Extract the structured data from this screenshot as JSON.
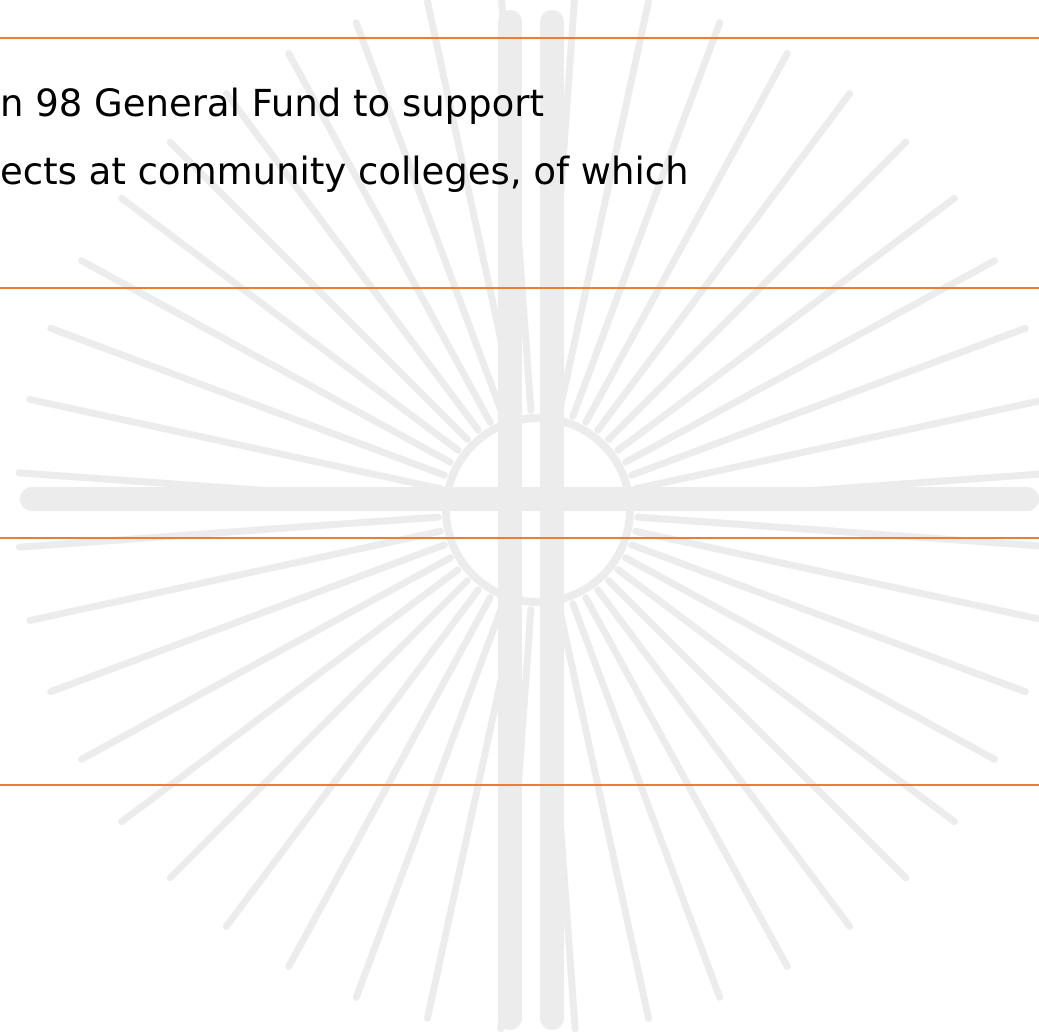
{
  "content": {
    "line_1": "n 98 General Fund to support",
    "line_2": "ects at community colleges, of which"
  },
  "colors": {
    "rule": "#ed7d31",
    "watermark": "#ececec",
    "text": "#000000",
    "background": "#ffffff"
  },
  "icons": {
    "watermark": "sunburst-cross-icon"
  }
}
